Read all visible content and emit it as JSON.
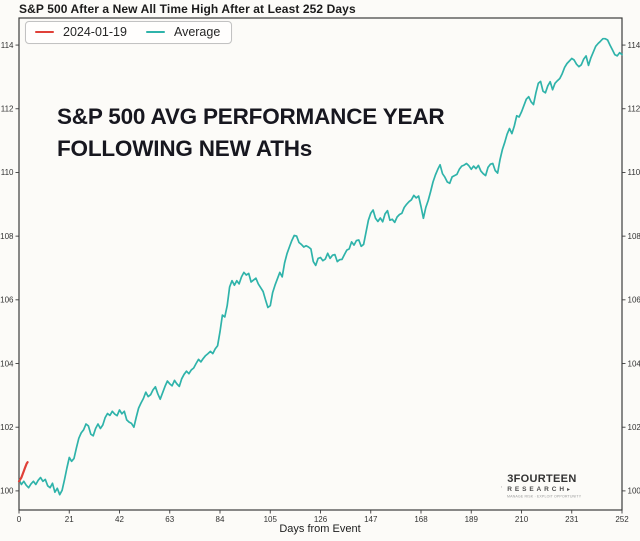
{
  "header": {
    "title": "S&P 500 After a New All Time High After at Least 252 Days"
  },
  "legend": {
    "items": [
      {
        "label": "2024-01-19",
        "color": "#e04038"
      },
      {
        "label": "Average",
        "color": "#2fb3aa"
      }
    ]
  },
  "annotation": {
    "line1": "S&P 500 AVG PERFORMANCE YEAR",
    "line2": "FOLLOWING NEW ATHs"
  },
  "branding": {
    "name": "3FOURTEEN",
    "sub": "RESEARCH",
    "arrow": "▸",
    "tagline": "MANAGE RISK · EXPLOIT OPPORTUNITY"
  },
  "chart_data": {
    "type": "line",
    "title": "S&P 500 After a New All Time High After at Least 252 Days",
    "xlabel": "Days from Event",
    "ylabel": "",
    "xlim": [
      0,
      252
    ],
    "ylim": [
      99.4,
      114.85
    ],
    "x_ticks": [
      0,
      21,
      42,
      63,
      84,
      105,
      126,
      147,
      168,
      189,
      210,
      231,
      252
    ],
    "y_ticks": [
      100,
      102,
      104,
      106,
      108,
      110,
      112,
      114
    ],
    "grid": false,
    "legend_position": "upper-left",
    "axis_color": "#3c3c3c",
    "tick_label_color": "#333333",
    "series": [
      {
        "name": "Average",
        "color": "#2fb3aa",
        "width": 1.7,
        "points": [
          [
            0,
            100.35
          ],
          [
            1,
            100.2
          ],
          [
            2,
            100.3
          ],
          [
            3,
            100.18
          ],
          [
            4,
            100.1
          ],
          [
            5,
            100.22
          ],
          [
            6,
            100.3
          ],
          [
            7,
            100.2
          ],
          [
            8,
            100.33
          ],
          [
            9,
            100.42
          ],
          [
            10,
            100.3
          ],
          [
            11,
            100.36
          ],
          [
            12,
            100.16
          ],
          [
            13,
            100.1
          ],
          [
            14,
            100.24
          ],
          [
            15,
            99.96
          ],
          [
            16,
            100.08
          ],
          [
            17,
            99.88
          ],
          [
            18,
            100.02
          ],
          [
            19,
            100.35
          ],
          [
            20,
            100.72
          ],
          [
            21,
            101.05
          ],
          [
            22,
            100.93
          ],
          [
            23,
            101.02
          ],
          [
            24,
            101.35
          ],
          [
            25,
            101.65
          ],
          [
            26,
            101.82
          ],
          [
            27,
            101.92
          ],
          [
            28,
            102.1
          ],
          [
            29,
            102.04
          ],
          [
            30,
            101.78
          ],
          [
            31,
            101.73
          ],
          [
            32,
            101.96
          ],
          [
            33,
            102.1
          ],
          [
            34,
            101.96
          ],
          [
            35,
            102.07
          ],
          [
            36,
            102.3
          ],
          [
            37,
            102.43
          ],
          [
            38,
            102.37
          ],
          [
            39,
            102.5
          ],
          [
            40,
            102.41
          ],
          [
            41,
            102.36
          ],
          [
            42,
            102.54
          ],
          [
            43,
            102.42
          ],
          [
            44,
            102.5
          ],
          [
            45,
            102.23
          ],
          [
            46,
            102.16
          ],
          [
            47,
            102.12
          ],
          [
            48,
            102.0
          ],
          [
            49,
            102.32
          ],
          [
            50,
            102.6
          ],
          [
            51,
            102.76
          ],
          [
            52,
            102.9
          ],
          [
            53,
            103.1
          ],
          [
            54,
            102.96
          ],
          [
            55,
            103.02
          ],
          [
            56,
            103.17
          ],
          [
            57,
            103.27
          ],
          [
            58,
            103.05
          ],
          [
            59,
            102.88
          ],
          [
            60,
            103.08
          ],
          [
            61,
            103.28
          ],
          [
            62,
            103.45
          ],
          [
            63,
            103.36
          ],
          [
            64,
            103.3
          ],
          [
            65,
            103.47
          ],
          [
            66,
            103.36
          ],
          [
            67,
            103.28
          ],
          [
            68,
            103.52
          ],
          [
            69,
            103.66
          ],
          [
            70,
            103.76
          ],
          [
            71,
            103.68
          ],
          [
            72,
            103.8
          ],
          [
            73,
            103.86
          ],
          [
            74,
            104.0
          ],
          [
            75,
            104.13
          ],
          [
            76,
            104.05
          ],
          [
            77,
            104.16
          ],
          [
            78,
            104.25
          ],
          [
            79,
            104.31
          ],
          [
            80,
            104.38
          ],
          [
            81,
            104.31
          ],
          [
            82,
            104.46
          ],
          [
            83,
            104.56
          ],
          [
            84,
            105.0
          ],
          [
            85,
            105.52
          ],
          [
            86,
            105.46
          ],
          [
            87,
            105.82
          ],
          [
            88,
            106.4
          ],
          [
            89,
            106.6
          ],
          [
            90,
            106.46
          ],
          [
            91,
            106.6
          ],
          [
            92,
            106.5
          ],
          [
            93,
            106.72
          ],
          [
            94,
            106.86
          ],
          [
            95,
            106.78
          ],
          [
            96,
            106.83
          ],
          [
            97,
            106.56
          ],
          [
            98,
            106.62
          ],
          [
            99,
            106.68
          ],
          [
            100,
            106.5
          ],
          [
            101,
            106.38
          ],
          [
            102,
            106.26
          ],
          [
            103,
            106.0
          ],
          [
            104,
            105.76
          ],
          [
            105,
            105.82
          ],
          [
            106,
            106.22
          ],
          [
            107,
            106.46
          ],
          [
            108,
            106.66
          ],
          [
            109,
            106.86
          ],
          [
            110,
            106.72
          ],
          [
            111,
            107.16
          ],
          [
            112,
            107.45
          ],
          [
            113,
            107.66
          ],
          [
            114,
            107.86
          ],
          [
            115,
            108.02
          ],
          [
            116,
            108.0
          ],
          [
            117,
            107.8
          ],
          [
            118,
            107.74
          ],
          [
            119,
            107.66
          ],
          [
            120,
            107.7
          ],
          [
            121,
            107.66
          ],
          [
            122,
            107.6
          ],
          [
            123,
            107.2
          ],
          [
            124,
            107.08
          ],
          [
            125,
            107.3
          ],
          [
            126,
            107.33
          ],
          [
            127,
            107.23
          ],
          [
            128,
            107.28
          ],
          [
            129,
            107.46
          ],
          [
            130,
            107.3
          ],
          [
            131,
            107.4
          ],
          [
            132,
            107.42
          ],
          [
            133,
            107.2
          ],
          [
            134,
            107.26
          ],
          [
            135,
            107.27
          ],
          [
            136,
            107.42
          ],
          [
            137,
            107.56
          ],
          [
            138,
            107.6
          ],
          [
            139,
            107.82
          ],
          [
            140,
            107.72
          ],
          [
            141,
            107.86
          ],
          [
            142,
            107.88
          ],
          [
            143,
            107.68
          ],
          [
            144,
            107.74
          ],
          [
            145,
            108.12
          ],
          [
            146,
            108.5
          ],
          [
            147,
            108.72
          ],
          [
            148,
            108.82
          ],
          [
            149,
            108.56
          ],
          [
            150,
            108.46
          ],
          [
            151,
            108.57
          ],
          [
            152,
            108.45
          ],
          [
            153,
            108.7
          ],
          [
            154,
            108.8
          ],
          [
            155,
            108.5
          ],
          [
            156,
            108.53
          ],
          [
            157,
            108.43
          ],
          [
            158,
            108.6
          ],
          [
            159,
            108.68
          ],
          [
            160,
            108.72
          ],
          [
            161,
            108.9
          ],
          [
            162,
            109.0
          ],
          [
            163,
            109.08
          ],
          [
            164,
            109.14
          ],
          [
            165,
            109.28
          ],
          [
            166,
            109.2
          ],
          [
            167,
            109.26
          ],
          [
            168,
            108.93
          ],
          [
            169,
            108.56
          ],
          [
            170,
            108.9
          ],
          [
            171,
            109.12
          ],
          [
            172,
            109.4
          ],
          [
            173,
            109.7
          ],
          [
            174,
            109.92
          ],
          [
            175,
            110.1
          ],
          [
            176,
            110.24
          ],
          [
            177,
            109.96
          ],
          [
            178,
            109.85
          ],
          [
            179,
            109.7
          ],
          [
            180,
            109.66
          ],
          [
            181,
            109.86
          ],
          [
            182,
            109.9
          ],
          [
            183,
            109.94
          ],
          [
            184,
            110.1
          ],
          [
            185,
            110.2
          ],
          [
            186,
            110.23
          ],
          [
            187,
            110.28
          ],
          [
            188,
            110.21
          ],
          [
            189,
            110.1
          ],
          [
            190,
            110.2
          ],
          [
            191,
            110.12
          ],
          [
            192,
            110.22
          ],
          [
            193,
            110.05
          ],
          [
            194,
            109.96
          ],
          [
            195,
            109.9
          ],
          [
            196,
            110.16
          ],
          [
            197,
            110.26
          ],
          [
            198,
            110.28
          ],
          [
            199,
            110.06
          ],
          [
            200,
            109.98
          ],
          [
            201,
            110.4
          ],
          [
            202,
            110.72
          ],
          [
            203,
            110.95
          ],
          [
            204,
            111.2
          ],
          [
            205,
            111.38
          ],
          [
            206,
            111.22
          ],
          [
            207,
            111.46
          ],
          [
            208,
            111.78
          ],
          [
            209,
            111.74
          ],
          [
            210,
            111.9
          ],
          [
            211,
            112.1
          ],
          [
            212,
            112.3
          ],
          [
            213,
            112.38
          ],
          [
            214,
            112.22
          ],
          [
            215,
            112.13
          ],
          [
            216,
            112.5
          ],
          [
            217,
            112.8
          ],
          [
            218,
            112.86
          ],
          [
            219,
            112.55
          ],
          [
            220,
            112.5
          ],
          [
            221,
            112.72
          ],
          [
            222,
            112.85
          ],
          [
            223,
            112.6
          ],
          [
            224,
            112.8
          ],
          [
            225,
            112.88
          ],
          [
            226,
            112.95
          ],
          [
            227,
            113.1
          ],
          [
            228,
            113.3
          ],
          [
            229,
            113.42
          ],
          [
            230,
            113.5
          ],
          [
            231,
            113.58
          ],
          [
            232,
            113.53
          ],
          [
            233,
            113.4
          ],
          [
            234,
            113.32
          ],
          [
            235,
            113.38
          ],
          [
            236,
            113.56
          ],
          [
            237,
            113.66
          ],
          [
            238,
            113.36
          ],
          [
            239,
            113.6
          ],
          [
            240,
            113.78
          ],
          [
            241,
            113.96
          ],
          [
            242,
            114.05
          ],
          [
            243,
            114.12
          ],
          [
            244,
            114.2
          ],
          [
            245,
            114.2
          ],
          [
            246,
            114.16
          ],
          [
            247,
            114.0
          ],
          [
            248,
            113.85
          ],
          [
            249,
            113.7
          ],
          [
            250,
            113.66
          ],
          [
            251,
            113.76
          ],
          [
            252,
            113.7
          ]
        ]
      },
      {
        "name": "2024-01-19",
        "color": "#e04038",
        "width": 2.2,
        "points": [
          [
            0,
            100.3
          ],
          [
            1,
            100.42
          ],
          [
            2,
            100.62
          ],
          [
            2.6,
            100.74
          ],
          [
            3.2,
            100.86
          ],
          [
            3.6,
            100.9
          ]
        ]
      }
    ]
  }
}
